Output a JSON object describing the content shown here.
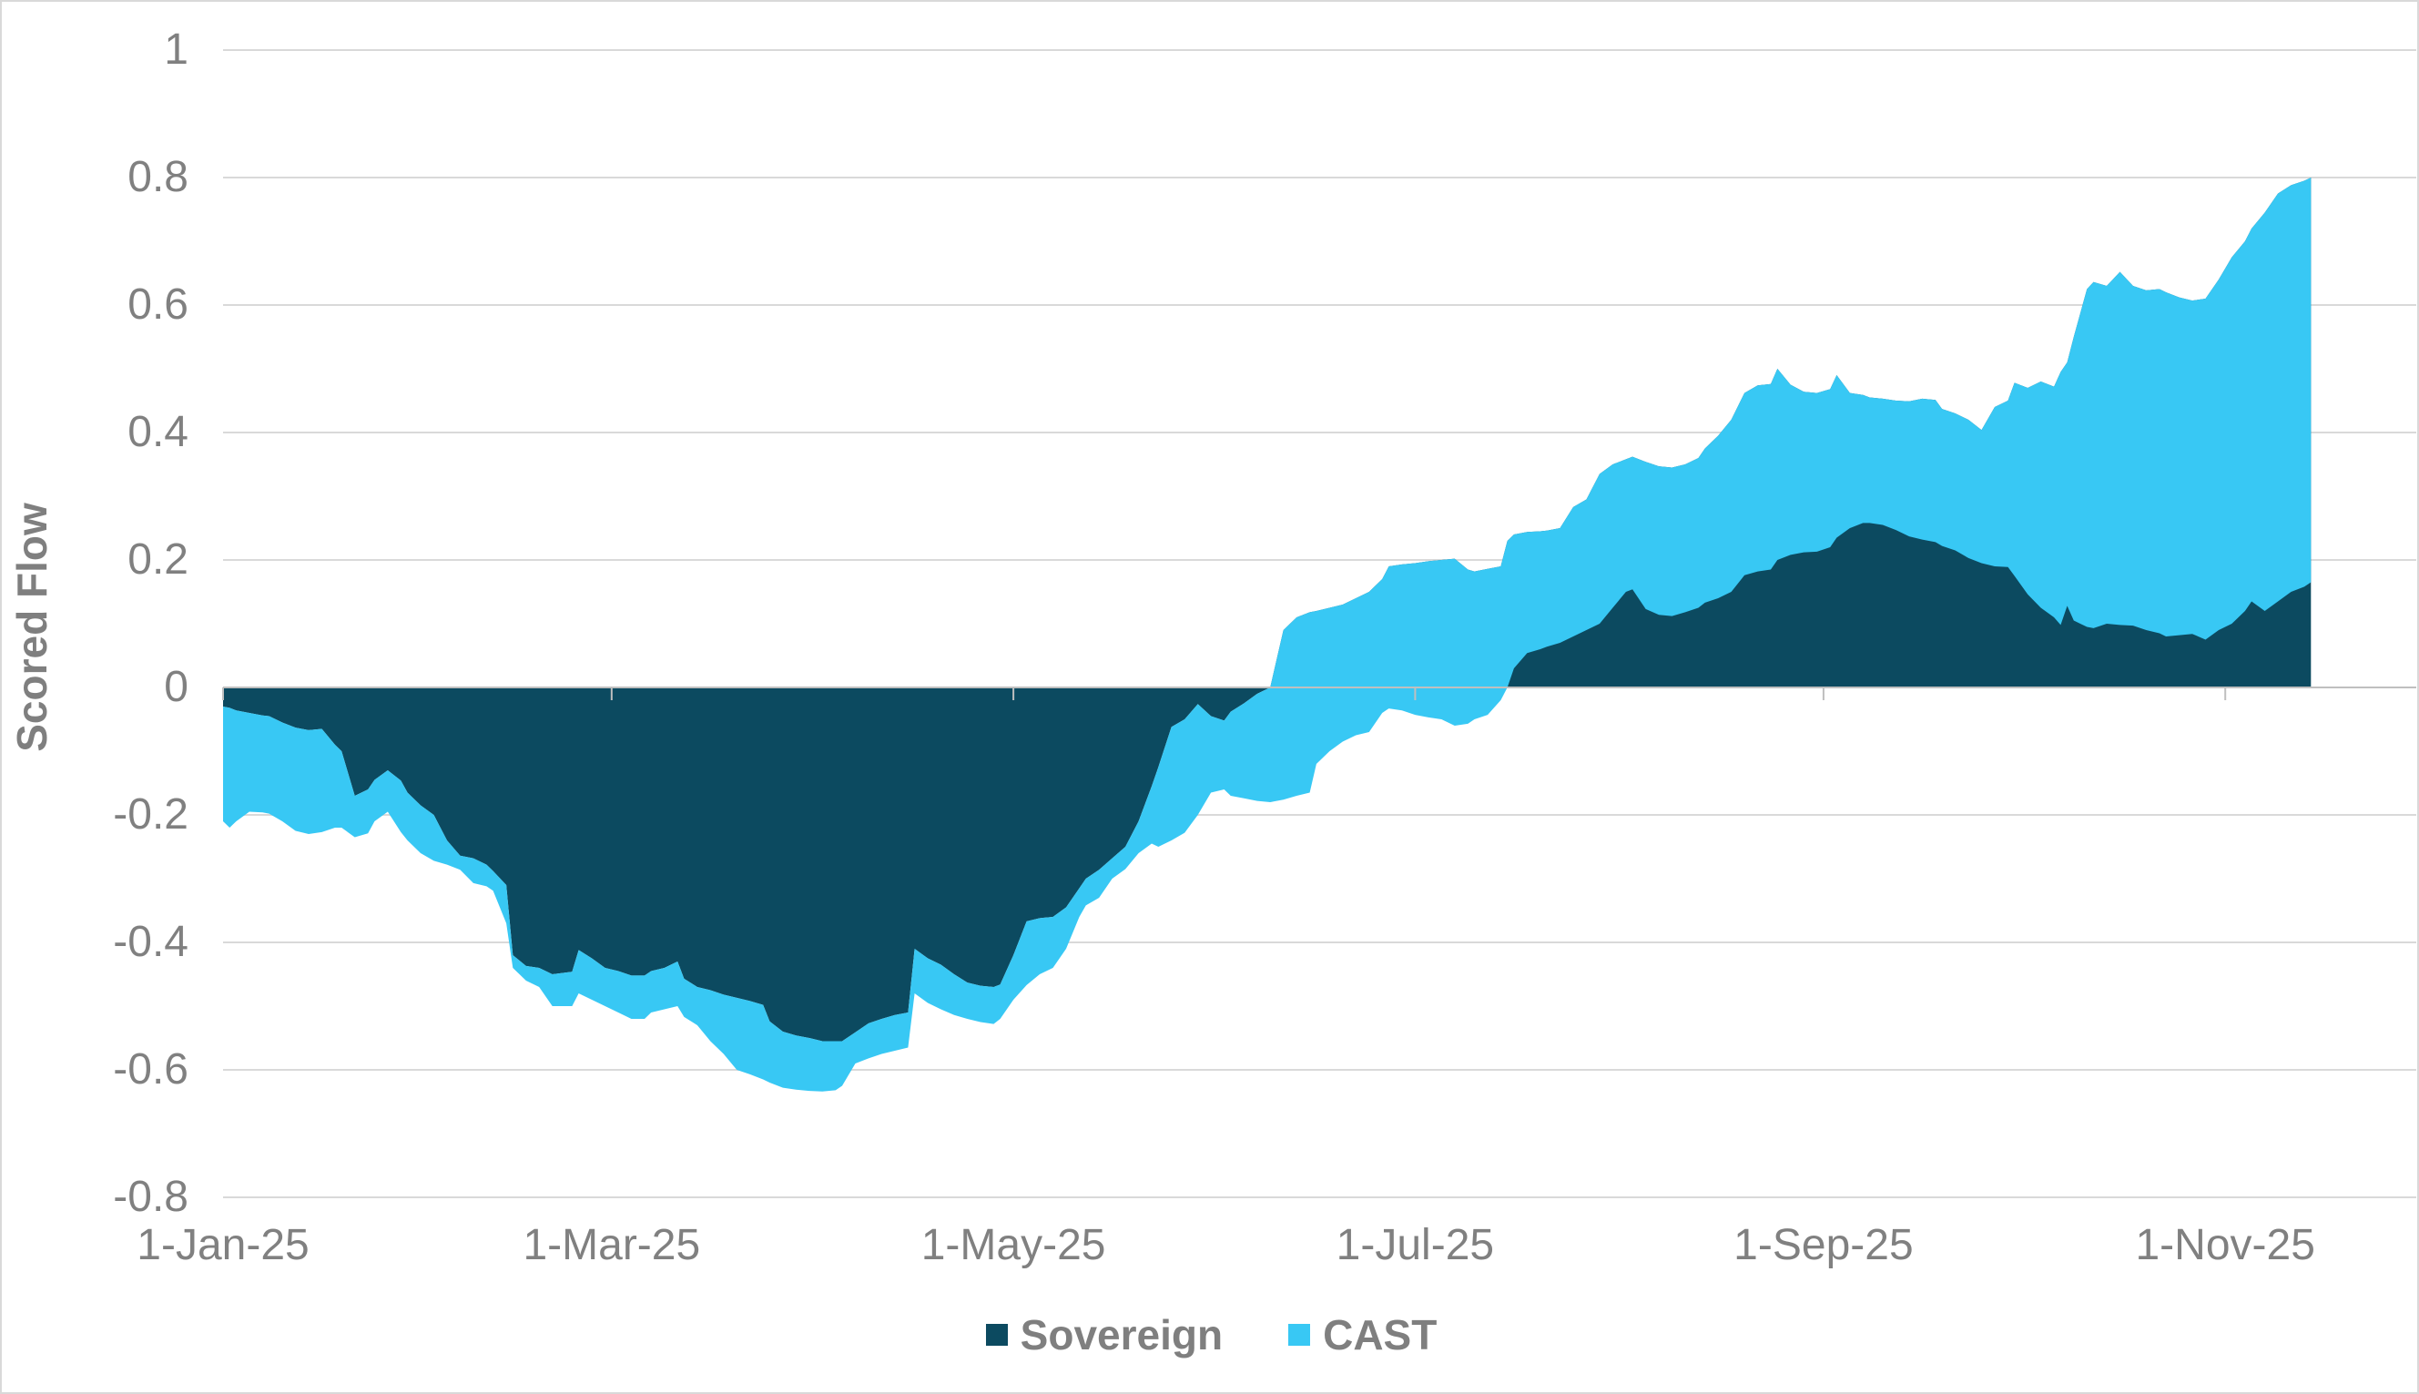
{
  "y_axis_title": "Scored Flow",
  "colors": {
    "sovereign": "#0c4a60",
    "cast": "#38c8f4",
    "gridline": "#d9d9d9",
    "zero_axis": "#bfbfbf",
    "tick_text": "#808080",
    "label_text": "#7f7f7f",
    "background": "#ffffff",
    "border": "#d9d9d9"
  },
  "chart_data": {
    "type": "area",
    "subtype": "stacked-area-time-series",
    "title": "",
    "xlabel": "",
    "ylabel": "Scored Flow",
    "ylim": [
      -0.8,
      1
    ],
    "grid": "horizontal",
    "legend_position": "bottom-center",
    "x_axis": {
      "start_date": "1-Jan-25",
      "end_date": "14-Nov-25",
      "domain_days": [
        0,
        333
      ],
      "ticks": [
        {
          "label": "1-Jan-25",
          "day": 0
        },
        {
          "label": "1-Mar-25",
          "day": 59
        },
        {
          "label": "1-May-25",
          "day": 120
        },
        {
          "label": "1-Jul-25",
          "day": 181
        },
        {
          "label": "1-Sep-25",
          "day": 243
        },
        {
          "label": "1-Nov-25",
          "day": 304
        }
      ]
    },
    "y_ticks": [
      {
        "label": "1",
        "v": 1.0
      },
      {
        "label": "0.8",
        "v": 0.8
      },
      {
        "label": "0.6",
        "v": 0.6
      },
      {
        "label": "0.4",
        "v": 0.4
      },
      {
        "label": "0.2",
        "v": 0.2
      },
      {
        "label": "0",
        "v": 0.0
      },
      {
        "label": "-0.2",
        "v": -0.2
      },
      {
        "label": "-0.4",
        "v": -0.4
      },
      {
        "label": "-0.6",
        "v": -0.6
      },
      {
        "label": "-0.8",
        "v": -0.8
      }
    ],
    "notes": "Stacked area chart. Sovereign (dark) is the base series from 0; CAST (light) is stacked on top of Sovereign and drawn over it, so where CAST is negative the light band hangs below the Sovereign edge (Jan-May below zero; Jun-Nov the light band spans from sovereign+cast up to sovereign). Visible dark edge = sovereign (Jan-early Jun) or sovereign+cast (Jul-Nov); visible outer cyan edge = sovereign+cast (Jan-early Jun) or sovereign (Jul-Nov).",
    "x_days": [
      0,
      1,
      2,
      4,
      6,
      7,
      9,
      11,
      13,
      15,
      17,
      18,
      20,
      22,
      23,
      25,
      27,
      28,
      30,
      32,
      34,
      36,
      38,
      40,
      41,
      43,
      44,
      46,
      48,
      50,
      53,
      54,
      56,
      58,
      60,
      62,
      64,
      65,
      67,
      69,
      70,
      72,
      74,
      76,
      78,
      80,
      82,
      83,
      85,
      87,
      89,
      91,
      93,
      94,
      96,
      98,
      100,
      102,
      104,
      105,
      107,
      109,
      111,
      113,
      115,
      117,
      118,
      120,
      122,
      124,
      126,
      128,
      130,
      131,
      133,
      135,
      137,
      139,
      141,
      142,
      144,
      146,
      148,
      150,
      152,
      153,
      155,
      157,
      159,
      161,
      163,
      165,
      166,
      168,
      170,
      172,
      174,
      176,
      177,
      179,
      181,
      183,
      185,
      187,
      189,
      190,
      192,
      194,
      195,
      196,
      198,
      200,
      201,
      203,
      205,
      207,
      209,
      211,
      213,
      214,
      216,
      218,
      220,
      222,
      224,
      225,
      227,
      229,
      231,
      233,
      235,
      236,
      238,
      240,
      242,
      244,
      245,
      247,
      249,
      250,
      252,
      254,
      256,
      258,
      260,
      261,
      263,
      265,
      267,
      269,
      271,
      272,
      274,
      276,
      278,
      279,
      280,
      281,
      283,
      284,
      286,
      288,
      290,
      292,
      294,
      295,
      297,
      299,
      301,
      303,
      305,
      307,
      308,
      310,
      312,
      314,
      316,
      317
    ],
    "series": [
      {
        "name": "Sovereign",
        "values": [
          -0.03,
          -0.032,
          -0.036,
          -0.04,
          -0.044,
          -0.045,
          -0.055,
          -0.063,
          -0.067,
          -0.065,
          -0.09,
          -0.1,
          -0.17,
          -0.16,
          -0.145,
          -0.13,
          -0.146,
          -0.165,
          -0.185,
          -0.2,
          -0.24,
          -0.264,
          -0.268,
          -0.278,
          -0.288,
          -0.31,
          -0.42,
          -0.437,
          -0.44,
          -0.45,
          -0.446,
          -0.412,
          -0.425,
          -0.44,
          -0.445,
          -0.452,
          -0.452,
          -0.445,
          -0.44,
          -0.43,
          -0.457,
          -0.47,
          -0.475,
          -0.482,
          -0.487,
          -0.492,
          -0.498,
          -0.524,
          -0.54,
          -0.546,
          -0.55,
          -0.555,
          -0.555,
          -0.555,
          -0.541,
          -0.527,
          -0.52,
          -0.514,
          -0.51,
          -0.41,
          -0.425,
          -0.435,
          -0.45,
          -0.463,
          -0.468,
          -0.47,
          -0.466,
          -0.42,
          -0.367,
          -0.362,
          -0.36,
          -0.345,
          -0.315,
          -0.3,
          -0.286,
          -0.268,
          -0.25,
          -0.21,
          -0.155,
          -0.125,
          -0.062,
          -0.05,
          -0.026,
          -0.045,
          -0.052,
          -0.038,
          -0.025,
          -0.01,
          0.0,
          0.09,
          0.11,
          0.118,
          0.12,
          0.125,
          0.13,
          0.14,
          0.15,
          0.17,
          0.19,
          0.193,
          0.195,
          0.198,
          0.2,
          0.202,
          0.185,
          0.182,
          0.186,
          0.19,
          0.23,
          0.24,
          0.244,
          0.245,
          0.246,
          0.25,
          0.283,
          0.295,
          0.335,
          0.35,
          0.358,
          0.362,
          0.354,
          0.347,
          0.345,
          0.35,
          0.36,
          0.375,
          0.395,
          0.42,
          0.462,
          0.474,
          0.476,
          0.5,
          0.475,
          0.464,
          0.462,
          0.468,
          0.49,
          0.462,
          0.459,
          0.455,
          0.453,
          0.45,
          0.449,
          0.453,
          0.451,
          0.437,
          0.43,
          0.42,
          0.404,
          0.44,
          0.45,
          0.478,
          0.47,
          0.48,
          0.472,
          0.495,
          0.51,
          0.55,
          0.625,
          0.636,
          0.63,
          0.652,
          0.63,
          0.623,
          0.625,
          0.62,
          0.612,
          0.607,
          0.61,
          0.64,
          0.675,
          0.7,
          0.72,
          0.745,
          0.775,
          0.788,
          0.795,
          0.8
        ]
      },
      {
        "name": "CAST",
        "values": [
          -0.18,
          -0.188,
          -0.174,
          -0.155,
          -0.152,
          -0.153,
          -0.155,
          -0.162,
          -0.163,
          -0.162,
          -0.13,
          -0.12,
          -0.065,
          -0.069,
          -0.065,
          -0.065,
          -0.081,
          -0.075,
          -0.075,
          -0.072,
          -0.038,
          -0.022,
          -0.039,
          -0.034,
          -0.031,
          -0.06,
          -0.02,
          -0.023,
          -0.03,
          -0.05,
          -0.054,
          -0.068,
          -0.065,
          -0.06,
          -0.065,
          -0.068,
          -0.068,
          -0.065,
          -0.065,
          -0.07,
          -0.06,
          -0.06,
          -0.08,
          -0.093,
          -0.113,
          -0.115,
          -0.117,
          -0.096,
          -0.088,
          -0.085,
          -0.083,
          -0.079,
          -0.077,
          -0.07,
          -0.049,
          -0.055,
          -0.055,
          -0.056,
          -0.055,
          -0.07,
          -0.07,
          -0.07,
          -0.064,
          -0.057,
          -0.057,
          -0.058,
          -0.054,
          -0.07,
          -0.1,
          -0.088,
          -0.08,
          -0.065,
          -0.045,
          -0.042,
          -0.044,
          -0.032,
          -0.035,
          -0.05,
          -0.09,
          -0.125,
          -0.178,
          -0.178,
          -0.174,
          -0.12,
          -0.108,
          -0.132,
          -0.149,
          -0.168,
          -0.18,
          -0.266,
          -0.28,
          -0.283,
          -0.24,
          -0.225,
          -0.215,
          -0.215,
          -0.22,
          -0.21,
          -0.223,
          -0.229,
          -0.238,
          -0.245,
          -0.25,
          -0.262,
          -0.242,
          -0.232,
          -0.229,
          -0.21,
          -0.23,
          -0.21,
          -0.19,
          -0.185,
          -0.182,
          -0.18,
          -0.203,
          -0.205,
          -0.235,
          -0.225,
          -0.208,
          -0.208,
          -0.231,
          -0.233,
          -0.233,
          -0.232,
          -0.235,
          -0.242,
          -0.255,
          -0.27,
          -0.286,
          -0.292,
          -0.291,
          -0.3,
          -0.267,
          -0.252,
          -0.249,
          -0.248,
          -0.255,
          -0.212,
          -0.201,
          -0.197,
          -0.198,
          -0.203,
          -0.212,
          -0.221,
          -0.223,
          -0.215,
          -0.215,
          -0.217,
          -0.209,
          -0.25,
          -0.261,
          -0.303,
          -0.324,
          -0.355,
          -0.362,
          -0.397,
          -0.382,
          -0.445,
          -0.53,
          -0.543,
          -0.53,
          -0.554,
          -0.533,
          -0.533,
          -0.54,
          -0.54,
          -0.53,
          -0.523,
          -0.535,
          -0.55,
          -0.575,
          -0.58,
          -0.585,
          -0.625,
          -0.64,
          -0.638,
          -0.637,
          -0.635
        ]
      }
    ]
  },
  "legend": {
    "items": [
      {
        "label": "Sovereign"
      },
      {
        "label": "CAST"
      }
    ]
  }
}
